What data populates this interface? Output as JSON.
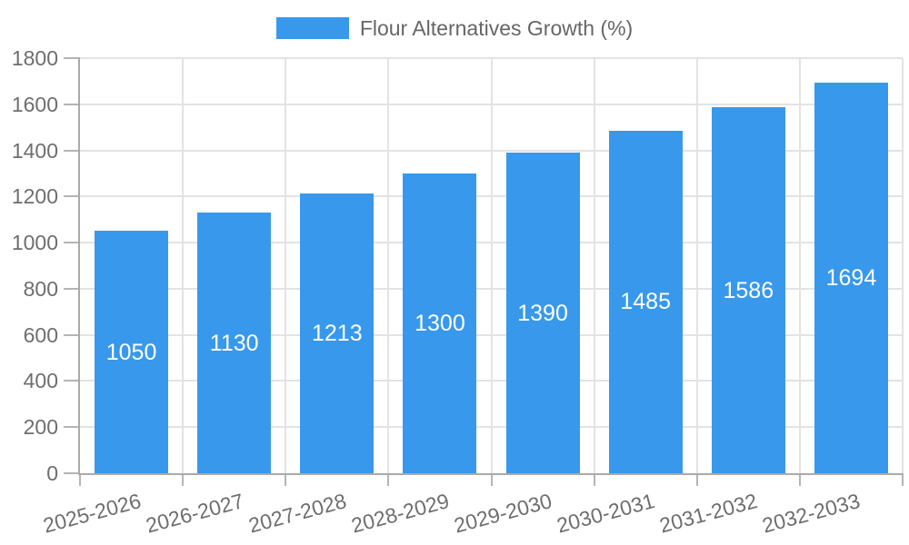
{
  "chart_data": {
    "type": "bar",
    "title": "Flour Alternatives Growth (%)",
    "legend_position": "top",
    "categories": [
      "2025-2026",
      "2026-2027",
      "2027-2028",
      "2028-2029",
      "2029-2030",
      "2030-2031",
      "2031-2032",
      "2032-2033"
    ],
    "series": [
      {
        "name": "Flour Alternatives Growth (%)",
        "color": "#3899ec",
        "values": [
          1050,
          1130,
          1213,
          1300,
          1390,
          1485,
          1586,
          1694
        ]
      }
    ],
    "value_labels": [
      "1050",
      "1130",
      "1213",
      "1300",
      "1390",
      "1485",
      "1586",
      "1694"
    ],
    "xlabel": "",
    "ylabel": "",
    "ylim": [
      0,
      1800
    ],
    "yticks": [
      0,
      200,
      400,
      600,
      800,
      1000,
      1200,
      1400,
      1600,
      1800
    ],
    "grid": true
  },
  "style": {
    "bar_color": "#3899ec",
    "value_label_color": "#ffffff",
    "axis_text_color": "#6e6e6e",
    "legend_text_color": "#666666",
    "grid_color": "#e3e3e3",
    "axis_line_color": "#aaaaaa",
    "tick_color": "#b5b5b5",
    "background": "#ffffff"
  }
}
